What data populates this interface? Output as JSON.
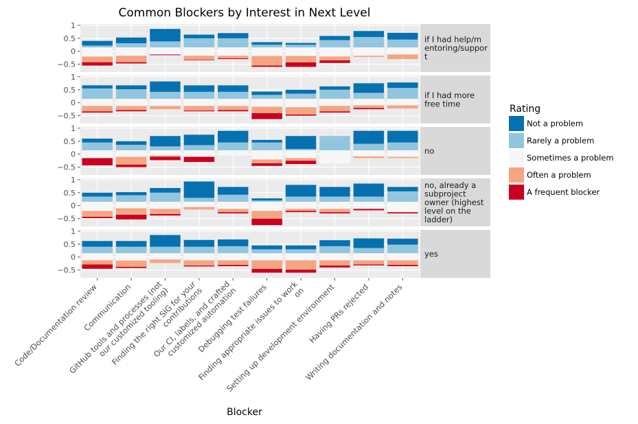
{
  "chart_data": {
    "type": "bar",
    "subtype": "diverging-stacked-bar-faceted",
    "title": "Common Blockers by Interest in Next Level",
    "xlabel": "Blocker",
    "ylabel": "",
    "ylim": [
      -0.8,
      1.05
    ],
    "yticks": [
      1,
      0.5,
      0,
      -0.5
    ],
    "ytick_labels": [
      "1",
      "0.5",
      "0",
      "−0.5"
    ],
    "grid": true,
    "legend": {
      "title": "Rating",
      "placement": "right",
      "entries": [
        "Not a problem",
        "Rarely a problem",
        "Sometimes a problem",
        "Often a problem",
        "A frequent blocker"
      ]
    },
    "colors": {
      "Not a problem": "#0571b0",
      "Rarely a problem": "#92c5de",
      "Sometimes a problem": "#f7f7f7",
      "Often a problem": "#f4a582",
      "A frequent blocker": "#ca0020"
    },
    "categories": [
      "Code/Documentation review",
      "Communication",
      "GitHub tools and processes (not\nour customized tooling)",
      "Finding the right SIG for your\ncontributions",
      "Our CI, labels, and crafted\ncustomized automation",
      "Debugging test failures",
      "Finding appropriate issues to work\non",
      "Setting up development environment",
      "Having PRs rejected",
      "Writing documentation and notes"
    ],
    "series_order": [
      "A frequent blocker",
      "Often a problem",
      "Sometimes a problem",
      "Rarely a problem",
      "Not a problem"
    ],
    "facets": [
      {
        "label": "if I had help/m\nentoring/suppor\nt",
        "data": [
          [
            -0.55,
            -0.42,
            -0.2,
            0.22,
            0.4
          ],
          [
            -0.47,
            -0.42,
            -0.17,
            0.31,
            0.53
          ],
          [
            -0.15,
            -0.12,
            -0.12,
            0.38,
            0.86
          ],
          [
            -0.35,
            -0.33,
            -0.17,
            0.5,
            0.64
          ],
          [
            -0.3,
            -0.27,
            -0.17,
            0.5,
            0.7
          ],
          [
            -0.6,
            -0.55,
            -0.18,
            0.25,
            0.35
          ],
          [
            -0.6,
            -0.43,
            -0.18,
            0.25,
            0.32
          ],
          [
            -0.45,
            -0.35,
            -0.2,
            0.43,
            0.59
          ],
          [
            -0.22,
            -0.22,
            -0.17,
            0.55,
            0.78
          ],
          [
            -0.3,
            -0.3,
            -0.12,
            0.45,
            0.71
          ]
        ]
      },
      {
        "label": "if I had more\nfree time",
        "data": [
          [
            -0.38,
            -0.33,
            -0.12,
            0.55,
            0.67
          ],
          [
            -0.33,
            -0.28,
            -0.12,
            0.52,
            0.67
          ],
          [
            -0.25,
            -0.25,
            -0.12,
            0.42,
            0.82
          ],
          [
            -0.33,
            -0.3,
            -0.12,
            0.42,
            0.67
          ],
          [
            -0.33,
            -0.28,
            -0.12,
            0.42,
            0.67
          ],
          [
            -0.63,
            -0.4,
            -0.15,
            0.3,
            0.43
          ],
          [
            -0.5,
            -0.45,
            -0.17,
            0.35,
            0.5
          ],
          [
            -0.38,
            -0.33,
            -0.12,
            0.5,
            0.63
          ],
          [
            -0.25,
            -0.2,
            -0.1,
            0.38,
            0.75
          ],
          [
            -0.22,
            -0.22,
            -0.1,
            0.57,
            0.78
          ]
        ]
      },
      {
        "label": "no",
        "data": [
          [
            -0.43,
            -0.15,
            -0.15,
            0.45,
            0.6
          ],
          [
            -0.5,
            -0.4,
            -0.1,
            0.36,
            0.5
          ],
          [
            -0.23,
            -0.1,
            -0.05,
            0.3,
            0.7
          ],
          [
            -0.3,
            -0.1,
            -0.1,
            0.35,
            0.75
          ],
          [
            -0.05,
            -0.05,
            -0.05,
            0.45,
            0.9
          ],
          [
            -0.45,
            -0.35,
            -0.2,
            0.45,
            0.55
          ],
          [
            -0.38,
            -0.25,
            -0.15,
            0.2,
            0.7
          ],
          [
            -0.35,
            -0.35,
            -0.35,
            0.7,
            0.7
          ],
          [
            -0.15,
            -0.15,
            -0.08,
            0.4,
            0.9
          ],
          [
            -0.15,
            -0.15,
            -0.1,
            0.45,
            0.9
          ]
        ]
      },
      {
        "label": "no, already a\nsubproject\nowner (highest\nlevel on the\nladder)",
        "data": [
          [
            -0.48,
            -0.43,
            -0.2,
            0.35,
            0.5
          ],
          [
            -0.53,
            -0.35,
            -0.1,
            0.4,
            0.52
          ],
          [
            -0.38,
            -0.32,
            -0.12,
            0.5,
            0.68
          ],
          [
            -0.15,
            -0.15,
            -0.05,
            0.3,
            0.93
          ],
          [
            -0.3,
            -0.25,
            -0.12,
            0.42,
            0.72
          ],
          [
            -0.75,
            -0.5,
            -0.2,
            0.2,
            0.28
          ],
          [
            -0.25,
            -0.2,
            -0.12,
            0.35,
            0.8
          ],
          [
            -0.3,
            -0.25,
            -0.12,
            0.35,
            0.72
          ],
          [
            -0.18,
            -0.12,
            -0.12,
            0.35,
            0.85
          ],
          [
            -0.3,
            -0.25,
            -0.25,
            0.55,
            0.72
          ]
        ]
      },
      {
        "label": "yes",
        "data": [
          [
            -0.45,
            -0.28,
            -0.12,
            0.4,
            0.62
          ],
          [
            -0.42,
            -0.37,
            -0.13,
            0.4,
            0.62
          ],
          [
            -0.23,
            -0.23,
            -0.09,
            0.4,
            0.85
          ],
          [
            -0.36,
            -0.32,
            -0.12,
            0.4,
            0.66
          ],
          [
            -0.35,
            -0.3,
            -0.12,
            0.42,
            0.68
          ],
          [
            -0.6,
            -0.45,
            -0.12,
            0.3,
            0.45
          ],
          [
            -0.6,
            -0.48,
            -0.12,
            0.3,
            0.45
          ],
          [
            -0.4,
            -0.32,
            -0.12,
            0.42,
            0.65
          ],
          [
            -0.32,
            -0.28,
            -0.12,
            0.35,
            0.72
          ],
          [
            -0.35,
            -0.3,
            -0.12,
            0.48,
            0.71
          ]
        ]
      }
    ]
  }
}
